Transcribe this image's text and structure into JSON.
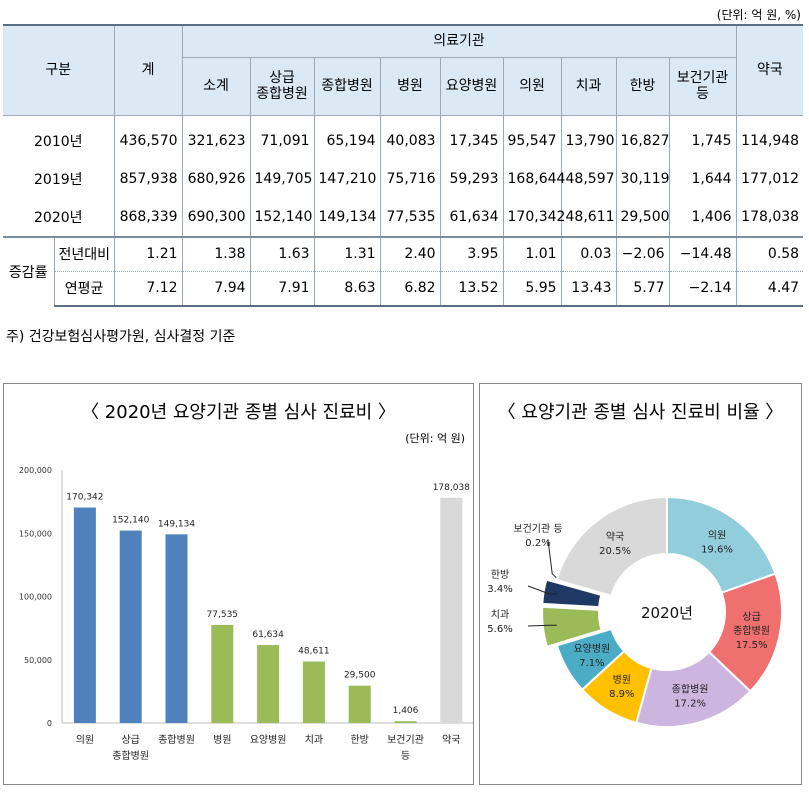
{
  "unit_top": "(단위: 억 원, %)",
  "table": {
    "header": {
      "category": "구분",
      "total": "계",
      "group": "의료기관",
      "pharmacy": "약국",
      "sub": [
        {
          "line1": "소계",
          "line2": ""
        },
        {
          "line1": "상급",
          "line2": "종합병원"
        },
        {
          "line1": "종합병원",
          "line2": ""
        },
        {
          "line1": "병원",
          "line2": ""
        },
        {
          "line1": "요양병원",
          "line2": ""
        },
        {
          "line1": "의원",
          "line2": ""
        },
        {
          "line1": "치과",
          "line2": ""
        },
        {
          "line1": "한방",
          "line2": ""
        },
        {
          "line1": "보건기관",
          "line2": "등"
        }
      ]
    },
    "year_rows": [
      {
        "label": "2010년",
        "values": [
          "436,570",
          "321,623",
          "71,091",
          "65,194",
          "40,083",
          "17,345",
          "95,547",
          "13,790",
          "16,827",
          "1,745",
          "114,948"
        ]
      },
      {
        "label": "2019년",
        "values": [
          "857,938",
          "680,926",
          "149,705",
          "147,210",
          "75,716",
          "59,293",
          "168,644",
          "48,597",
          "30,119",
          "1,644",
          "177,012"
        ]
      },
      {
        "label": "2020년",
        "values": [
          "868,339",
          "690,300",
          "152,140",
          "149,134",
          "77,535",
          "61,634",
          "170,342",
          "48,611",
          "29,500",
          "1,406",
          "178,038"
        ]
      }
    ],
    "growth_group": "증감률",
    "growth_rows": [
      {
        "label": "전년대비",
        "values": [
          "1.21",
          "1.38",
          "1.63",
          "1.31",
          "2.40",
          "3.95",
          "1.01",
          "0.03",
          "−2.06",
          "−14.48",
          "0.58"
        ]
      },
      {
        "label": "연평균",
        "values": [
          "7.12",
          "7.94",
          "7.91",
          "8.63",
          "6.82",
          "13.52",
          "5.95",
          "13.43",
          "5.77",
          "−2.14",
          "4.47"
        ]
      }
    ]
  },
  "note": "주) 건강보험심사평가원, 심사결정 기준",
  "bar_panel": {
    "title": "〈 2020년 요양기관 종별 심사 진료비 〉",
    "unit": "(단위: 억 원)"
  },
  "pie_panel": {
    "title": "〈 요양기관 종별 심사 진료비 비율 〉",
    "center_label": "2020년"
  },
  "colors": {
    "blue": "#4f81bd",
    "green": "#9bbb59",
    "gray": "#d9d9d9"
  },
  "chart_data": [
    {
      "type": "bar",
      "title": "〈 2020년 요양기관 종별 심사 진료비 〉",
      "ylabel": "(단위: 억 원)",
      "ylim": [
        0,
        200000
      ],
      "yticks": [
        "0",
        "50,000",
        "100,000",
        "150,000",
        "200,000"
      ],
      "categories": [
        {
          "line1": "의원",
          "line2": ""
        },
        {
          "line1": "상급",
          "line2": "종합병원"
        },
        {
          "line1": "종합병원",
          "line2": ""
        },
        {
          "line1": "병원",
          "line2": ""
        },
        {
          "line1": "요양병원",
          "line2": ""
        },
        {
          "line1": "치과",
          "line2": ""
        },
        {
          "line1": "한방",
          "line2": ""
        },
        {
          "line1": "보건기관",
          "line2": "등"
        },
        {
          "line1": "약국",
          "line2": ""
        }
      ],
      "values": [
        170342,
        152140,
        149134,
        77535,
        61634,
        48611,
        29500,
        1406,
        178038
      ],
      "labels": [
        "170,342",
        "152,140",
        "149,134",
        "77,535",
        "61,634",
        "48,611",
        "29,500",
        "1,406",
        "178,038"
      ],
      "bar_colors": [
        "#4f81bd",
        "#4f81bd",
        "#4f81bd",
        "#9bbb59",
        "#9bbb59",
        "#9bbb59",
        "#9bbb59",
        "#9bbb59",
        "#d9d9d9"
      ]
    },
    {
      "type": "pie",
      "title": "〈 요양기관 종별 심사 진료비 비율 〉",
      "center_label": "2020년",
      "slices": [
        {
          "name": "의원",
          "pct": 19.6,
          "label": "19.6%",
          "color": "#92cddc"
        },
        {
          "name": "상급 종합병원",
          "line1": "상급",
          "line2": "종합병원",
          "pct": 17.5,
          "label": "17.5%",
          "color": "#f07070"
        },
        {
          "name": "종합병원",
          "pct": 17.2,
          "label": "17.2%",
          "color": "#ccb6e0"
        },
        {
          "name": "병원",
          "pct": 8.9,
          "label": "8.9%",
          "color": "#ffc000"
        },
        {
          "name": "요양병원",
          "pct": 7.1,
          "label": "7.1%",
          "color": "#4bacc6"
        },
        {
          "name": "치과",
          "pct": 5.6,
          "label": "5.6%",
          "color": "#9bbb59"
        },
        {
          "name": "한방",
          "pct": 3.4,
          "label": "3.4%",
          "color": "#1f3864"
        },
        {
          "name": "보건기관 등",
          "pct": 0.2,
          "label": "0.2%",
          "color": "#7f7f7f"
        },
        {
          "name": "약국",
          "pct": 20.5,
          "label": "20.5%",
          "color": "#d9d9d9"
        }
      ]
    }
  ]
}
